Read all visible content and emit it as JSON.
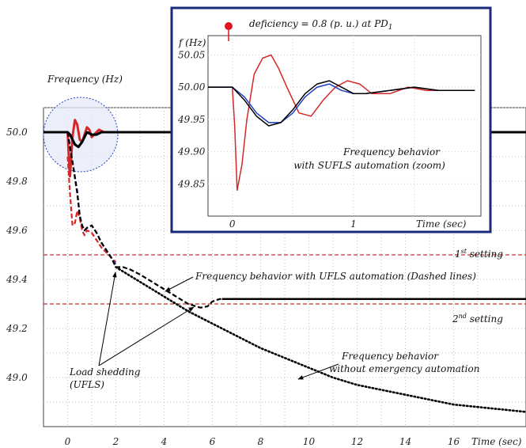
{
  "chart_data": [
    {
      "type": "line",
      "ylabel": "Frequency (Hz)",
      "xlabel": "Time (sec)",
      "xlim": [
        -1,
        19
      ],
      "ylim": [
        48.8,
        50.1
      ],
      "x_ticks": [
        0,
        2,
        4,
        6,
        8,
        10,
        12,
        14,
        16
      ],
      "x_tick_labels": [
        "0",
        "2",
        "4",
        "6",
        "8",
        "10",
        "12",
        "14",
        "16"
      ],
      "y_ticks": [
        50.0,
        49.8,
        49.6,
        49.4,
        49.2,
        49.0
      ],
      "y_tick_labels": [
        "50.0",
        "49.8",
        "49.6",
        "49.4",
        "49.2",
        "49.0"
      ],
      "grid": true,
      "thresholds": [
        {
          "label": "1st setting",
          "label_base": "1",
          "label_sup": "st",
          "label_rest": " setting",
          "value": 49.5,
          "color": "#d62728"
        },
        {
          "label": "2nd setting",
          "label_base": "2",
          "label_sup": "nd",
          "label_rest": " setting",
          "value": 49.3,
          "color": "#d62728"
        }
      ],
      "series": [
        {
          "style": "solid",
          "color": "#d62728",
          "x": [
            -1,
            0,
            0.05,
            0.1,
            0.2,
            0.3,
            0.4,
            0.5,
            0.6,
            0.7,
            0.8,
            0.9,
            1.0,
            1.1,
            1.3,
            1.5,
            1.7,
            2.0
          ],
          "y": [
            50.0,
            50.0,
            49.9,
            49.82,
            49.98,
            50.05,
            50.03,
            49.97,
            49.96,
            49.99,
            50.02,
            50.01,
            49.98,
            49.99,
            50.01,
            50.0,
            50.0,
            50.0
          ]
        },
        {
          "style": "solid",
          "color": "#1f3fbf",
          "x": [
            -1,
            0,
            0.1,
            0.2,
            0.3,
            0.45,
            0.6,
            0.8,
            1.0,
            1.2,
            1.4,
            1.7,
            2.0
          ],
          "y": [
            50.0,
            50.0,
            49.99,
            49.97,
            49.95,
            49.94,
            49.96,
            50.0,
            49.99,
            49.99,
            50.0,
            50.0,
            50.0
          ]
        },
        {
          "style": "solid",
          "color": "#000000",
          "x": [
            -1,
            0,
            0.1,
            0.2,
            0.3,
            0.45,
            0.6,
            0.8,
            1.0,
            1.2,
            1.4,
            1.7,
            2.0,
            19
          ],
          "y": [
            50.0,
            50.0,
            49.99,
            49.97,
            49.95,
            49.94,
            49.96,
            50.0,
            49.99,
            49.99,
            50.0,
            50.0,
            50.0,
            50.0
          ]
        },
        {
          "style": "dashed",
          "color": "#d62728",
          "x": [
            0,
            0.1,
            0.2,
            0.3,
            0.4,
            0.5,
            0.6,
            0.7,
            0.8,
            1.0,
            1.2,
            1.4,
            1.6,
            1.8,
            2.0
          ],
          "y": [
            49.9,
            49.75,
            49.62,
            49.63,
            49.68,
            49.65,
            49.6,
            49.58,
            49.6,
            49.59,
            49.56,
            49.53,
            49.51,
            49.49,
            49.47
          ]
        },
        {
          "style": "dashed",
          "color": "#1f3fbf",
          "x": [
            0,
            0.2,
            0.4,
            0.5,
            0.6,
            0.7,
            0.8,
            1.0,
            1.2,
            1.4,
            1.6,
            1.8,
            2.0
          ],
          "y": [
            50.0,
            49.88,
            49.76,
            49.66,
            49.62,
            49.6,
            49.61,
            49.62,
            49.59,
            49.55,
            49.52,
            49.49,
            49.46
          ]
        },
        {
          "style": "dashed",
          "color": "#000000",
          "x": [
            0,
            0.2,
            0.4,
            0.5,
            0.6,
            0.7,
            0.8,
            1.0,
            1.2,
            1.4,
            1.6,
            1.8,
            2.0,
            2.3,
            2.6,
            3.0,
            3.5,
            4.0,
            4.5,
            5.0,
            5.5,
            5.8,
            6.0,
            6.3,
            6.6,
            8,
            10,
            14,
            19
          ],
          "y": [
            50.0,
            49.88,
            49.75,
            49.66,
            49.62,
            49.6,
            49.61,
            49.62,
            49.59,
            49.55,
            49.52,
            49.49,
            49.45,
            49.45,
            49.44,
            49.42,
            49.39,
            49.36,
            49.33,
            49.3,
            49.285,
            49.29,
            49.31,
            49.32,
            49.32,
            49.32,
            49.32,
            49.32,
            49.32
          ]
        },
        {
          "style": "solid-thin",
          "color": "#000000",
          "x": [
            6.4,
            8,
            10,
            14,
            19
          ],
          "y": [
            49.32,
            49.32,
            49.32,
            49.32,
            49.32
          ]
        },
        {
          "style": "dotted",
          "color": "#000000",
          "x": [
            2.0,
            2.5,
            3,
            3.5,
            4,
            5,
            6,
            7,
            8,
            9,
            10,
            11,
            12,
            13,
            14,
            15,
            16,
            17,
            18,
            19
          ],
          "y": [
            49.45,
            49.42,
            49.39,
            49.36,
            49.33,
            49.27,
            49.22,
            49.17,
            49.12,
            49.08,
            49.04,
            49.0,
            48.97,
            48.95,
            48.93,
            48.91,
            48.89,
            48.88,
            48.87,
            48.86
          ]
        }
      ],
      "annotations": {
        "ufls_behavior": "Frequency behavior with UFLS automation (Dashed lines)",
        "no_auto_line1": "Frequency behavior",
        "no_auto_line2": "without emergency automation",
        "load_shedding_line1": "Load shedding",
        "load_shedding_line2": "(UFLS)"
      }
    },
    {
      "type": "line",
      "title_prefix": "deficiency = 0.8 (p. u.) at PD",
      "title_subscript": "1",
      "ylabel": "f (Hz)",
      "xlabel": "Time (sec)",
      "xlim": [
        -0.2,
        2.05
      ],
      "ylim": [
        49.8,
        50.08
      ],
      "x_ticks": [
        0,
        1
      ],
      "x_tick_labels": [
        "0",
        "1"
      ],
      "y_ticks": [
        50.05,
        50.0,
        49.95,
        49.9,
        49.85
      ],
      "y_tick_labels": [
        "50.05",
        "50.00",
        "49.95",
        "49.90",
        "49.85"
      ],
      "grid": true,
      "note_line1": "Frequency behavior",
      "note_line2": "with SUFLS automation (zoom)",
      "series": [
        {
          "color": "#d62728",
          "x": [
            -0.2,
            0,
            0.02,
            0.04,
            0.08,
            0.12,
            0.18,
            0.25,
            0.32,
            0.38,
            0.45,
            0.55,
            0.65,
            0.75,
            0.85,
            0.95,
            1.05,
            1.15,
            1.3,
            1.45,
            1.6,
            1.8,
            2.0
          ],
          "y": [
            50.0,
            50.0,
            49.94,
            49.84,
            49.88,
            49.95,
            50.02,
            50.045,
            50.05,
            50.03,
            50.0,
            49.96,
            49.955,
            49.98,
            50.0,
            50.01,
            50.005,
            49.99,
            49.99,
            50.0,
            49.995,
            49.995,
            49.995
          ]
        },
        {
          "color": "#1f3fbf",
          "x": [
            -0.2,
            0,
            0.1,
            0.2,
            0.3,
            0.4,
            0.5,
            0.6,
            0.7,
            0.8,
            0.9,
            1.0,
            1.1,
            1.3,
            1.5,
            1.7,
            2.0
          ],
          "y": [
            50.0,
            50.0,
            49.985,
            49.96,
            49.945,
            49.945,
            49.96,
            49.985,
            50.0,
            50.005,
            49.995,
            49.99,
            49.99,
            49.995,
            50.0,
            49.995,
            49.995
          ]
        },
        {
          "color": "#000000",
          "x": [
            -0.2,
            0,
            0.1,
            0.2,
            0.3,
            0.4,
            0.5,
            0.6,
            0.7,
            0.8,
            0.9,
            1.0,
            1.1,
            1.3,
            1.5,
            1.7,
            2.0
          ],
          "y": [
            50.0,
            50.0,
            49.98,
            49.955,
            49.94,
            49.945,
            49.965,
            49.99,
            50.005,
            50.01,
            50.0,
            49.99,
            49.99,
            49.995,
            50.0,
            49.995,
            49.995
          ]
        }
      ]
    }
  ]
}
